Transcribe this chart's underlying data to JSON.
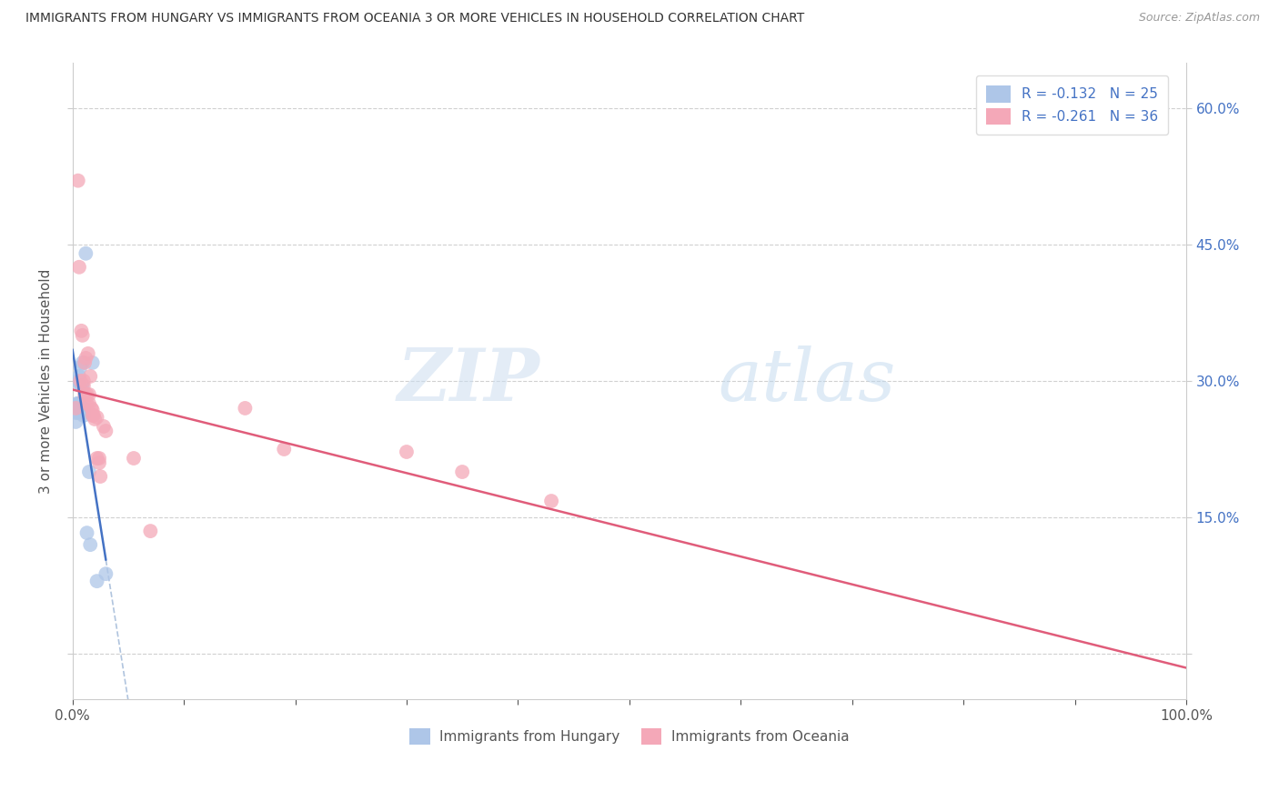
{
  "title": "IMMIGRANTS FROM HUNGARY VS IMMIGRANTS FROM OCEANIA 3 OR MORE VEHICLES IN HOUSEHOLD CORRELATION CHART",
  "source": "Source: ZipAtlas.com",
  "ylabel": "3 or more Vehicles in Household",
  "xlim": [
    0.0,
    1.0
  ],
  "ylim": [
    -0.05,
    0.65
  ],
  "yticks": [
    0.0,
    0.15,
    0.3,
    0.45,
    0.6
  ],
  "ytick_labels": [
    "",
    "15.0%",
    "30.0%",
    "45.0%",
    "60.0%"
  ],
  "xticks": [
    0.0,
    0.1,
    0.2,
    0.3,
    0.4,
    0.5,
    0.6,
    0.7,
    0.8,
    0.9,
    1.0
  ],
  "xtick_labels_show": [
    "0.0%",
    "100.0%"
  ],
  "hungary_R": -0.132,
  "hungary_N": 25,
  "oceania_R": -0.261,
  "oceania_N": 36,
  "hungary_color": "#aec6e8",
  "oceania_color": "#f4a8b8",
  "hungary_line_color": "#4472c4",
  "oceania_line_color": "#e05c7a",
  "hungary_dashed_color": "#b0c4de",
  "legend_label_hungary": "Immigrants from Hungary",
  "legend_label_oceania": "Immigrants from Oceania",
  "watermark_zip": "ZIP",
  "watermark_atlas": "atlas",
  "hungary_x": [
    0.003,
    0.003,
    0.004,
    0.005,
    0.005,
    0.005,
    0.006,
    0.006,
    0.007,
    0.007,
    0.007,
    0.008,
    0.008,
    0.009,
    0.009,
    0.01,
    0.01,
    0.01,
    0.012,
    0.013,
    0.015,
    0.016,
    0.018,
    0.022,
    0.03
  ],
  "hungary_y": [
    0.265,
    0.255,
    0.275,
    0.3,
    0.275,
    0.265,
    0.305,
    0.275,
    0.315,
    0.295,
    0.27,
    0.295,
    0.268,
    0.32,
    0.295,
    0.27,
    0.265,
    0.262,
    0.44,
    0.133,
    0.2,
    0.12,
    0.32,
    0.08,
    0.088
  ],
  "oceania_x": [
    0.003,
    0.005,
    0.006,
    0.007,
    0.008,
    0.009,
    0.01,
    0.01,
    0.011,
    0.011,
    0.012,
    0.013,
    0.013,
    0.014,
    0.015,
    0.015,
    0.016,
    0.017,
    0.018,
    0.018,
    0.019,
    0.02,
    0.022,
    0.022,
    0.024,
    0.024,
    0.025,
    0.028,
    0.03,
    0.055,
    0.07,
    0.155,
    0.19,
    0.3,
    0.35,
    0.43
  ],
  "oceania_y": [
    0.27,
    0.52,
    0.425,
    0.3,
    0.355,
    0.35,
    0.3,
    0.295,
    0.32,
    0.285,
    0.325,
    0.285,
    0.275,
    0.33,
    0.285,
    0.275,
    0.305,
    0.27,
    0.268,
    0.262,
    0.262,
    0.258,
    0.26,
    0.215,
    0.215,
    0.21,
    0.195,
    0.25,
    0.245,
    0.215,
    0.135,
    0.27,
    0.225,
    0.222,
    0.2,
    0.168
  ]
}
